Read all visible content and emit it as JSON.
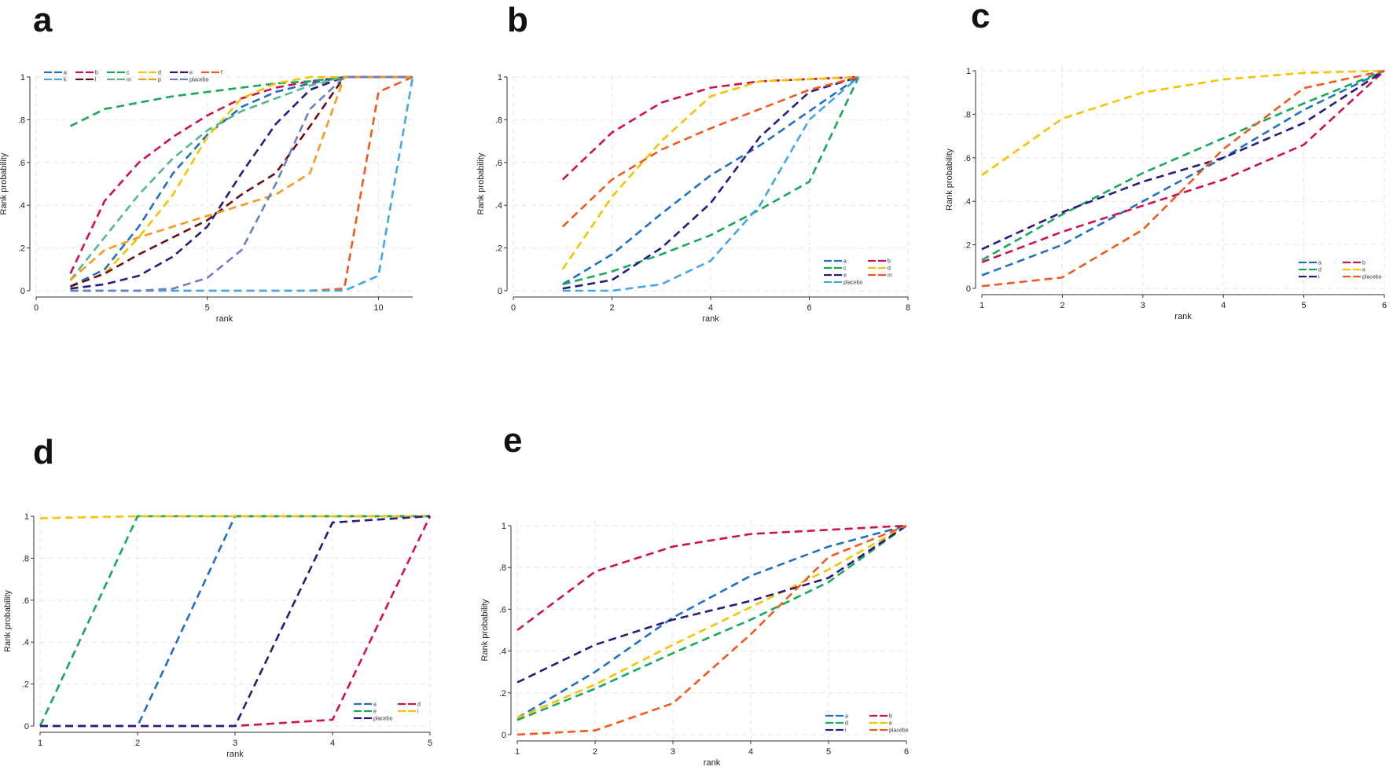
{
  "chart_data": [
    {
      "panel": "a",
      "type": "line",
      "xlabel": "rank",
      "ylabel": "Rank probability",
      "xlim": [
        0,
        11
      ],
      "ylim": [
        0,
        1
      ],
      "xticks": [
        0,
        5,
        10
      ],
      "yticks": [
        0,
        0.2,
        0.4,
        0.6,
        0.8,
        1
      ],
      "ytick_labels": [
        "0",
        ".2",
        ".4",
        ".6",
        ".8",
        "1"
      ],
      "grid": true,
      "legend": "top-left",
      "legend_cols": 6,
      "x": [
        1,
        2,
        3,
        4,
        5,
        6,
        7,
        8,
        9,
        10,
        11
      ],
      "series": [
        {
          "name": "a",
          "color": "#1f6fc5",
          "values": [
            0.02,
            0.1,
            0.3,
            0.55,
            0.73,
            0.86,
            0.93,
            0.97,
            1,
            1,
            1
          ]
        },
        {
          "name": "b",
          "color": "#d0104c",
          "values": [
            0.08,
            0.42,
            0.6,
            0.72,
            0.82,
            0.9,
            0.95,
            0.98,
            1,
            1,
            1
          ]
        },
        {
          "name": "c",
          "color": "#17a85a",
          "values": [
            0.77,
            0.85,
            0.88,
            0.91,
            0.93,
            0.95,
            0.97,
            0.98,
            1,
            1,
            1
          ]
        },
        {
          "name": "d",
          "color": "#f5c400",
          "values": [
            0.02,
            0.08,
            0.25,
            0.45,
            0.72,
            0.9,
            0.97,
            1,
            1,
            1,
            1
          ]
        },
        {
          "name": "e",
          "color": "#2a1a80",
          "values": [
            0.01,
            0.03,
            0.07,
            0.16,
            0.3,
            0.55,
            0.78,
            0.94,
            1,
            1,
            1
          ]
        },
        {
          "name": "f",
          "color": "#f05a1e",
          "values": [
            0,
            0,
            0,
            0,
            0,
            0,
            0,
            0,
            0.01,
            0.93,
            1
          ]
        },
        {
          "name": "k",
          "color": "#3fa9e8",
          "values": [
            0,
            0,
            0,
            0,
            0,
            0,
            0,
            0,
            0,
            0.07,
            1
          ]
        },
        {
          "name": "l",
          "color": "#6b0e14",
          "values": [
            0.02,
            0.08,
            0.17,
            0.25,
            0.33,
            0.45,
            0.55,
            0.77,
            1,
            1,
            1
          ]
        },
        {
          "name": "m",
          "color": "#52b98a",
          "values": [
            0.05,
            0.25,
            0.45,
            0.62,
            0.75,
            0.84,
            0.9,
            0.96,
            1,
            1,
            1
          ]
        },
        {
          "name": "p",
          "color": "#f59a1c",
          "values": [
            0.05,
            0.19,
            0.25,
            0.3,
            0.35,
            0.4,
            0.45,
            0.55,
            1,
            1,
            1
          ]
        },
        {
          "name": "placebo",
          "color": "#6a7fc4",
          "values": [
            0,
            0,
            0,
            0.01,
            0.06,
            0.19,
            0.5,
            0.85,
            1,
            1,
            1
          ]
        }
      ]
    },
    {
      "panel": "b",
      "type": "line",
      "xlabel": "rank",
      "ylabel": "Rank probability",
      "xlim": [
        0,
        8
      ],
      "ylim": [
        0,
        1
      ],
      "xticks": [
        0,
        2,
        4,
        6,
        8
      ],
      "yticks": [
        0,
        0.2,
        0.4,
        0.6,
        0.8,
        1
      ],
      "ytick_labels": [
        "0",
        ".2",
        ".4",
        ".6",
        ".8",
        "1"
      ],
      "grid": true,
      "legend": "bottom-right",
      "legend_cols": 2,
      "x": [
        1,
        2,
        3,
        4,
        5,
        6,
        7
      ],
      "series": [
        {
          "name": "a",
          "color": "#1f6fc5",
          "values": [
            0.03,
            0.17,
            0.36,
            0.54,
            0.68,
            0.84,
            1
          ]
        },
        {
          "name": "b",
          "color": "#d0104c",
          "values": [
            0.52,
            0.74,
            0.88,
            0.95,
            0.98,
            0.99,
            1
          ]
        },
        {
          "name": "c",
          "color": "#17a85a",
          "values": [
            0.03,
            0.09,
            0.17,
            0.26,
            0.38,
            0.51,
            1
          ]
        },
        {
          "name": "d",
          "color": "#f5c400",
          "values": [
            0.1,
            0.44,
            0.7,
            0.91,
            0.98,
            0.99,
            1
          ]
        },
        {
          "name": "e",
          "color": "#2a1a80",
          "values": [
            0.01,
            0.05,
            0.2,
            0.41,
            0.72,
            0.93,
            1
          ]
        },
        {
          "name": "m",
          "color": "#f05a1e",
          "values": [
            0.3,
            0.52,
            0.66,
            0.76,
            0.85,
            0.94,
            1
          ]
        },
        {
          "name": "placebo",
          "color": "#3fa9e8",
          "values": [
            0,
            0,
            0.03,
            0.14,
            0.4,
            0.8,
            1
          ]
        }
      ]
    },
    {
      "panel": "c",
      "type": "line",
      "xlabel": "rank",
      "ylabel": "Rank probability",
      "xlim": [
        1,
        6
      ],
      "ylim": [
        0,
        1
      ],
      "xticks": [
        1,
        2,
        3,
        4,
        5,
        6
      ],
      "yticks": [
        0,
        0.2,
        0.4,
        0.6,
        0.8,
        1
      ],
      "ytick_labels": [
        "0",
        ".2",
        ".4",
        ".6",
        ".8",
        "1"
      ],
      "grid": true,
      "legend": "bottom-right",
      "legend_cols": 2,
      "x": [
        1,
        2,
        3,
        4,
        5,
        6
      ],
      "series": [
        {
          "name": "a",
          "color": "#1f6fc5",
          "values": [
            0.06,
            0.2,
            0.4,
            0.6,
            0.82,
            1
          ]
        },
        {
          "name": "b",
          "color": "#d0104c",
          "values": [
            0.12,
            0.26,
            0.38,
            0.5,
            0.66,
            1
          ]
        },
        {
          "name": "d",
          "color": "#17a85a",
          "values": [
            0.13,
            0.34,
            0.53,
            0.69,
            0.85,
            1
          ]
        },
        {
          "name": "e",
          "color": "#f5c400",
          "values": [
            0.52,
            0.78,
            0.9,
            0.96,
            0.99,
            1
          ]
        },
        {
          "name": "i",
          "color": "#2a1a80",
          "values": [
            0.18,
            0.35,
            0.49,
            0.6,
            0.76,
            1
          ]
        },
        {
          "name": "placebo",
          "color": "#f05a1e",
          "values": [
            0.01,
            0.05,
            0.27,
            0.64,
            0.92,
            1
          ]
        }
      ]
    },
    {
      "panel": "d",
      "type": "line",
      "xlabel": "rank",
      "ylabel": "Rank probability",
      "xlim": [
        1,
        5
      ],
      "ylim": [
        0,
        1
      ],
      "xticks": [
        1,
        2,
        3,
        4,
        5
      ],
      "yticks": [
        0,
        0.2,
        0.4,
        0.6,
        0.8,
        1
      ],
      "ytick_labels": [
        "0",
        ".2",
        ".4",
        ".6",
        ".8",
        "1"
      ],
      "grid": true,
      "legend": "bottom-right",
      "legend_cols": 2,
      "x": [
        1,
        2,
        3,
        4,
        5
      ],
      "series": [
        {
          "name": "a",
          "color": "#1f6fc5",
          "values": [
            0,
            0,
            1,
            1,
            1
          ]
        },
        {
          "name": "d",
          "color": "#d0104c",
          "values": [
            0,
            0,
            0,
            0.03,
            1
          ]
        },
        {
          "name": "e",
          "color": "#17a85a",
          "values": [
            0,
            1,
            1,
            1,
            1
          ]
        },
        {
          "name": "i",
          "color": "#f5c400",
          "values": [
            0.99,
            1,
            1,
            1,
            1
          ]
        },
        {
          "name": "placebo",
          "color": "#2a1a80",
          "values": [
            0,
            0,
            0,
            0.97,
            1
          ]
        }
      ]
    },
    {
      "panel": "e",
      "type": "line",
      "xlabel": "rank",
      "ylabel": "Rank probability",
      "xlim": [
        1,
        6
      ],
      "ylim": [
        0,
        1
      ],
      "xticks": [
        1,
        2,
        3,
        4,
        5,
        6
      ],
      "yticks": [
        0,
        0.2,
        0.4,
        0.6,
        0.8,
        1
      ],
      "ytick_labels": [
        "0",
        ".2",
        ".4",
        ".6",
        ".8",
        "1"
      ],
      "grid": true,
      "legend": "bottom-right",
      "legend_cols": 2,
      "x": [
        1,
        2,
        3,
        4,
        5,
        6
      ],
      "series": [
        {
          "name": "a",
          "color": "#1f6fc5",
          "values": [
            0.08,
            0.3,
            0.56,
            0.76,
            0.9,
            1
          ]
        },
        {
          "name": "b",
          "color": "#d0104c",
          "values": [
            0.5,
            0.78,
            0.9,
            0.96,
            0.98,
            1
          ]
        },
        {
          "name": "d",
          "color": "#17a85a",
          "values": [
            0.07,
            0.22,
            0.39,
            0.55,
            0.73,
            1
          ]
        },
        {
          "name": "e",
          "color": "#f5c400",
          "values": [
            0.08,
            0.24,
            0.43,
            0.61,
            0.79,
            1
          ]
        },
        {
          "name": "i",
          "color": "#2a1a80",
          "values": [
            0.25,
            0.43,
            0.55,
            0.64,
            0.75,
            1
          ]
        },
        {
          "name": "placebo",
          "color": "#f05a1e",
          "values": [
            0,
            0.02,
            0.15,
            0.48,
            0.85,
            1
          ]
        }
      ]
    }
  ]
}
